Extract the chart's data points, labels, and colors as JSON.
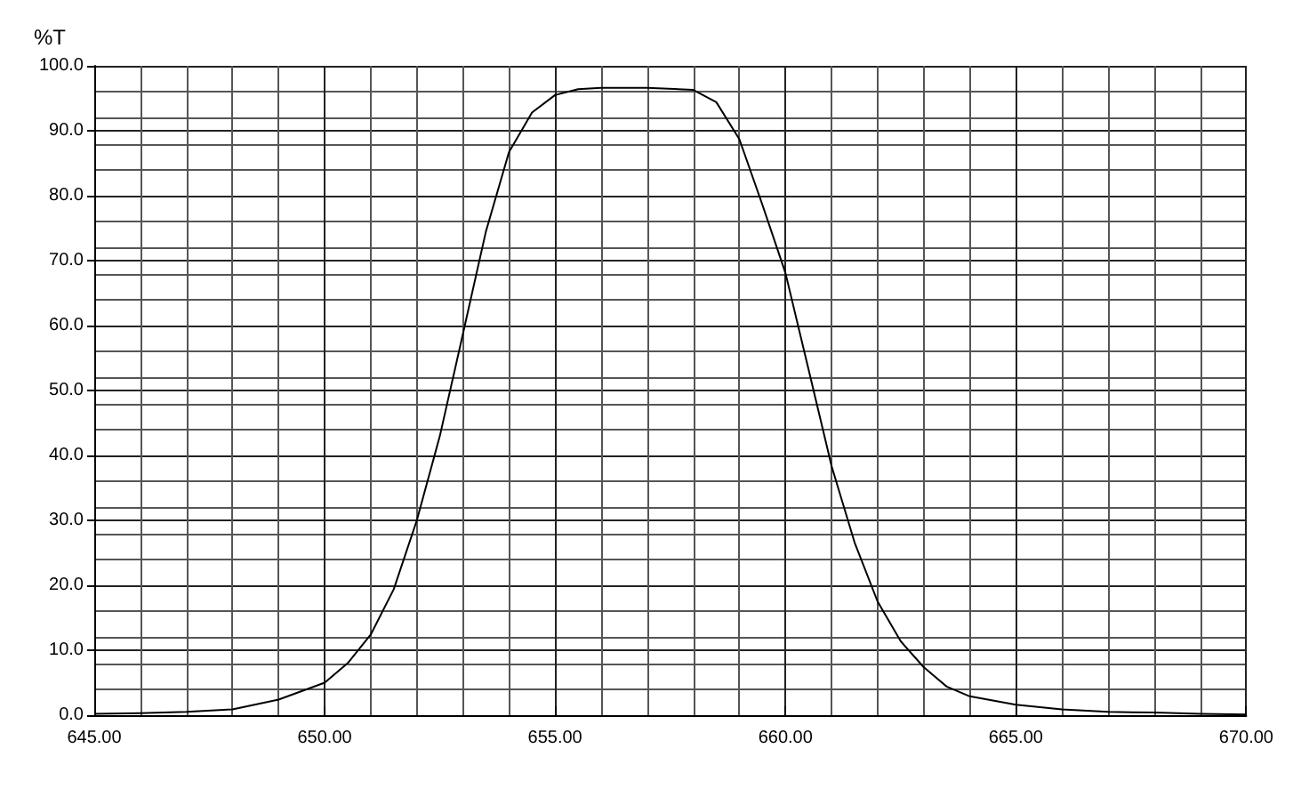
{
  "chart_data": {
    "type": "line",
    "ylabel": "%T",
    "x": [
      645,
      646,
      647,
      648,
      649,
      650,
      650.5,
      651,
      651.5,
      652,
      652.5,
      653,
      653.5,
      654,
      654.5,
      655,
      655.5,
      656,
      657,
      658,
      658.5,
      659,
      659.5,
      660,
      660.5,
      661,
      661.5,
      662,
      662.5,
      663,
      663.5,
      664,
      665,
      666,
      667,
      668,
      669,
      670
    ],
    "series": [
      {
        "color": "#000000",
        "values": [
          0.2,
          0.3,
          0.5,
          0.9,
          2.4,
          5.0,
          8.0,
          12.4,
          19.4,
          30.0,
          43.0,
          58.7,
          74.5,
          86.7,
          92.8,
          95.5,
          96.4,
          96.6,
          96.6,
          96.3,
          94.4,
          88.7,
          78.6,
          68.1,
          53.3,
          38.4,
          26.6,
          17.5,
          11.4,
          7.4,
          4.4,
          2.9,
          1.6,
          0.9,
          0.5,
          0.4,
          0.2,
          0.1
        ]
      }
    ],
    "xlim": [
      645,
      670
    ],
    "xticks": [
      {
        "value": 645,
        "label": "645.00"
      },
      {
        "value": 650,
        "label": "650.00"
      },
      {
        "value": 655,
        "label": "655.00"
      },
      {
        "value": 660,
        "label": "660.00"
      },
      {
        "value": 665,
        "label": "665.00"
      },
      {
        "value": 670,
        "label": "670.00"
      }
    ],
    "ylim": [
      0,
      100
    ],
    "yticks": [
      {
        "value": 0,
        "label": "0.0"
      },
      {
        "value": 10,
        "label": "10.0"
      },
      {
        "value": 20,
        "label": "20.0"
      },
      {
        "value": 30,
        "label": "30.0"
      },
      {
        "value": 40,
        "label": "40.0"
      },
      {
        "value": 50,
        "label": "50.0"
      },
      {
        "value": 60,
        "label": "60.0"
      },
      {
        "value": 70,
        "label": "70.0"
      },
      {
        "value": 80,
        "label": "80.0"
      },
      {
        "value": 90,
        "label": "90.0"
      },
      {
        "value": 100,
        "label": "100.0"
      }
    ],
    "grid": true,
    "marker": "none",
    "line_style": "solid"
  }
}
